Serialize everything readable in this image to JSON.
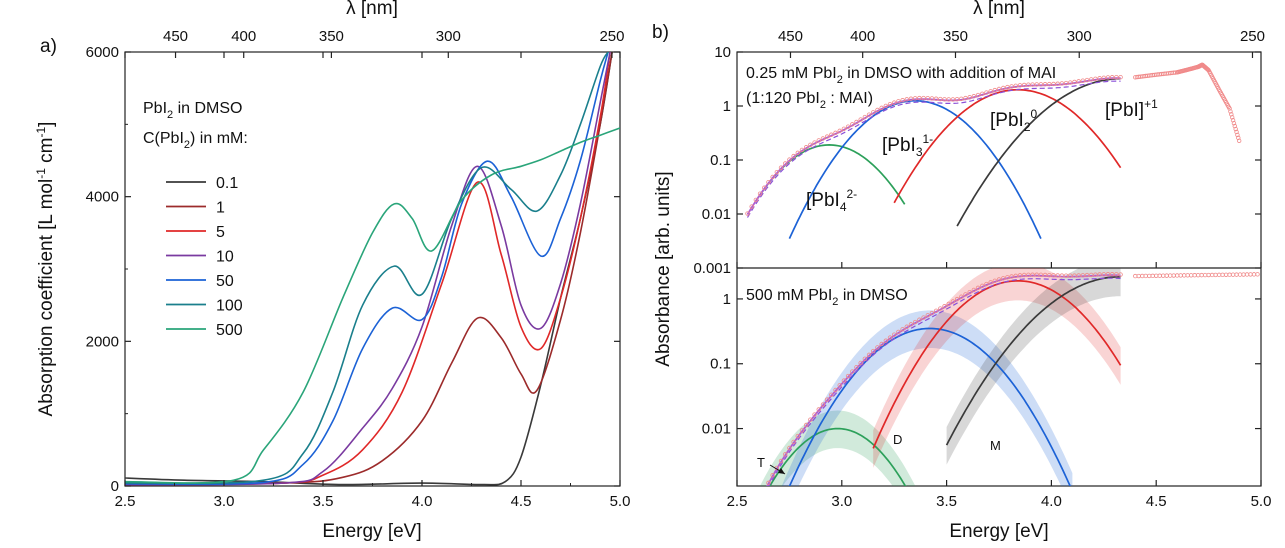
{
  "panel_a": {
    "label": "a)",
    "legend_title1": "PbI",
    "legend_title1_sub": "2",
    "legend_title1_rest": " in DMSO",
    "legend_title2": "C(PbI",
    "legend_title2_sub": "2",
    "legend_title2_rest": ") in mM:",
    "ylabel": "Absorption coefficient [L mol",
    "ylabel_sup1": "-1",
    "ylabel_mid": " cm",
    "ylabel_sup2": "-1",
    "ylabel_end": "]"
  },
  "panel_b": {
    "label": "b)",
    "top_note1_a": "0.25 mM PbI",
    "top_note1_sub": "2",
    "top_note1_b": " in DMSO with addition of MAI",
    "top_note2_a": "(1:120 PbI",
    "top_note2_sub": "2",
    "top_note2_b": " : MAI)",
    "bottom_note_a": "500 mM PbI",
    "bottom_note_sub": "2",
    "bottom_note_b": " in DMSO",
    "species_pbi4_a": "[PbI",
    "species_pbi4_sub": "4",
    "species_pbi4_sup": "2-",
    "species_pbi3_a": "[PbI",
    "species_pbi3_sub": "3",
    "species_pbi3_sup": "1-",
    "species_pbi2_a": "[PbI",
    "species_pbi2_sub": "2",
    "species_pbi2_sup": "0",
    "species_pbi_a": "[PbI]",
    "species_pbi_sup": "+1",
    "mark_T": "T",
    "mark_D": "D",
    "mark_M": "M",
    "ylabel": "Absorbance [arb. units]"
  },
  "chart_data": [
    {
      "type": "line",
      "title": "",
      "xlabel": "Energy [eV]",
      "ylabel": "Absorption coefficient [L mol-1 cm-1]",
      "top_xlabel": "λ [nm]",
      "xlim": [
        2.5,
        5.0
      ],
      "ylim": [
        0,
        6000
      ],
      "x_ticks": [
        "2.5",
        "3.0",
        "3.5",
        "4.0",
        "4.5",
        "5.0"
      ],
      "y_ticks": [
        "0",
        "2000",
        "4000",
        "6000"
      ],
      "top_ticks": [
        "450",
        "400",
        "350",
        "300",
        "250"
      ],
      "legend_title": "PbI2 in DMSO C(PbI2) in mM:",
      "series": [
        {
          "name": "0.1",
          "color": "#3a3a3a",
          "x": [
            2.5,
            2.8,
            3.2,
            3.6,
            4.0,
            4.3,
            4.42,
            4.5,
            4.6,
            4.7,
            4.8,
            4.9,
            4.96
          ],
          "values": [
            110,
            80,
            60,
            20,
            40,
            20,
            60,
            400,
            1400,
            2600,
            3700,
            5000,
            6000
          ]
        },
        {
          "name": "1",
          "color": "#9c2b2b",
          "x": [
            2.5,
            3.3,
            3.6,
            3.8,
            4.0,
            4.15,
            4.28,
            4.4,
            4.5,
            4.58,
            4.7,
            4.8,
            4.9,
            4.96
          ],
          "values": [
            30,
            40,
            120,
            350,
            900,
            1700,
            2320,
            2050,
            1550,
            1320,
            2300,
            3500,
            5000,
            6000
          ]
        },
        {
          "name": "5",
          "color": "#e02828",
          "x": [
            2.5,
            3.3,
            3.5,
            3.7,
            3.9,
            4.1,
            4.28,
            4.4,
            4.5,
            4.6,
            4.7,
            4.8,
            4.9,
            4.95
          ],
          "values": [
            20,
            40,
            150,
            500,
            1300,
            2800,
            4200,
            3200,
            2200,
            1900,
            2600,
            3700,
            5100,
            6000
          ]
        },
        {
          "name": "10",
          "color": "#7a3aa0",
          "x": [
            2.5,
            3.3,
            3.5,
            3.7,
            3.85,
            4.0,
            4.15,
            4.28,
            4.4,
            4.5,
            4.6,
            4.7,
            4.8,
            4.9,
            4.95
          ],
          "values": [
            20,
            40,
            200,
            800,
            1350,
            2200,
            3600,
            4420,
            3600,
            2500,
            2180,
            2800,
            3900,
            5300,
            6000
          ]
        },
        {
          "name": "50",
          "color": "#1c62d6",
          "x": [
            2.5,
            3.2,
            3.4,
            3.55,
            3.7,
            3.85,
            4.0,
            4.1,
            4.2,
            4.33,
            4.45,
            4.6,
            4.7,
            4.8,
            4.9,
            4.94
          ],
          "values": [
            30,
            50,
            300,
            900,
            1900,
            2460,
            2300,
            2900,
            3900,
            4490,
            4000,
            3180,
            3700,
            4500,
            5600,
            6000
          ]
        },
        {
          "name": "100",
          "color": "#1a7f8c",
          "x": [
            2.5,
            3.2,
            3.4,
            3.55,
            3.7,
            3.86,
            4.0,
            4.15,
            4.3,
            4.45,
            4.58,
            4.7,
            4.8,
            4.9,
            4.94
          ],
          "values": [
            40,
            80,
            450,
            1300,
            2500,
            3040,
            2650,
            3700,
            4400,
            4100,
            3800,
            4300,
            5000,
            5800,
            6000
          ]
        },
        {
          "name": "500",
          "color": "#2aa57a",
          "x": [
            2.5,
            3.05,
            3.2,
            3.4,
            3.6,
            3.75,
            3.86,
            3.95,
            4.05,
            4.2,
            4.35,
            4.5,
            4.6,
            4.7,
            4.8,
            4.9,
            5.0
          ],
          "values": [
            60,
            80,
            500,
            1300,
            2600,
            3500,
            3900,
            3700,
            3250,
            3950,
            4300,
            4420,
            4510,
            4630,
            4750,
            4850,
            4950
          ]
        }
      ]
    },
    {
      "type": "line",
      "scale": "log",
      "title": "0.25 mM PbI2 in DMSO with addition of MAI (1:120 PbI2 : MAI)",
      "xlabel": "Energy [eV]",
      "ylabel": "Absorbance [arb. units]",
      "top_xlabel": "λ [nm]",
      "xlim": [
        2.5,
        5.0
      ],
      "ylim": [
        0.001,
        10
      ],
      "y_ticks": [
        "0.001",
        "0.01",
        "0.1",
        "1",
        "10"
      ],
      "top_ticks": [
        "450",
        "400",
        "350",
        "300",
        "250"
      ],
      "series": [
        {
          "name": "[PbI4]2-",
          "color": "#2ca05a",
          "model": "gaussian",
          "peak_energy": 2.94,
          "peak_value": 0.19,
          "sigma": 0.16,
          "x_range": [
            2.6,
            3.3
          ]
        },
        {
          "name": "[PbI3]1-",
          "color": "#1c62d6",
          "model": "gaussian",
          "peak_energy": 3.35,
          "peak_value": 1.25,
          "sigma": 0.175,
          "x_range": [
            2.75,
            3.95
          ]
        },
        {
          "name": "[PbI2]0",
          "color": "#e02828",
          "model": "gaussian",
          "peak_energy": 3.84,
          "peak_value": 2.0,
          "sigma": 0.19,
          "x_range": [
            3.25,
            4.33
          ]
        },
        {
          "name": "[PbI]+1",
          "color": "#3a3a3a",
          "model": "gaussian",
          "peak_energy": 4.33,
          "peak_value": 3.2,
          "sigma": 0.22,
          "x_range": [
            3.55,
            4.33
          ]
        },
        {
          "name": "measured",
          "color": "#f08a8a",
          "marker": "open-circle",
          "x": [
            4.4,
            4.5,
            4.6,
            4.65,
            4.7,
            4.72,
            4.75,
            4.8,
            4.85,
            4.9
          ],
          "values": [
            3.4,
            3.8,
            4.2,
            4.7,
            5.3,
            5.8,
            4.6,
            2.0,
            0.9,
            0.2
          ]
        }
      ]
    },
    {
      "type": "line",
      "scale": "log",
      "title": "500 mM PbI2 in DMSO",
      "xlabel": "Energy [eV]",
      "ylabel": "Absorbance [arb. units]",
      "xlim": [
        2.5,
        5.0
      ],
      "ylim": [
        0.0013,
        3
      ],
      "x_ticks": [
        "2.5",
        "3.0",
        "3.5",
        "4.0",
        "4.5",
        "5.0"
      ],
      "y_ticks": [
        "0.01",
        "0.1",
        "1"
      ],
      "series": [
        {
          "name": "T",
          "color": "#2ca05a",
          "model": "gaussian",
          "peak_energy": 2.98,
          "peak_value": 0.01,
          "sigma": 0.16,
          "x_range": [
            2.55,
            3.4
          ]
        },
        {
          "name": "[PbI3]1-",
          "color": "#1c62d6",
          "model": "gaussian",
          "peak_energy": 3.42,
          "peak_value": 0.35,
          "sigma": 0.2,
          "x_range": [
            2.7,
            4.1
          ]
        },
        {
          "name": "D",
          "color": "#e02828",
          "model": "gaussian",
          "peak_energy": 3.84,
          "peak_value": 1.9,
          "sigma": 0.2,
          "x_range": [
            3.15,
            4.33
          ]
        },
        {
          "name": "M",
          "color": "#3a3a3a",
          "model": "gaussian",
          "peak_energy": 4.33,
          "peak_value": 2.2,
          "sigma": 0.24,
          "x_range": [
            3.5,
            4.33
          ]
        },
        {
          "name": "measured",
          "color": "#f08a8a",
          "marker": "open-circle",
          "x": [
            4.4,
            4.6,
            4.8,
            5.0
          ],
          "values": [
            2.25,
            2.3,
            2.35,
            2.4
          ]
        }
      ]
    }
  ]
}
